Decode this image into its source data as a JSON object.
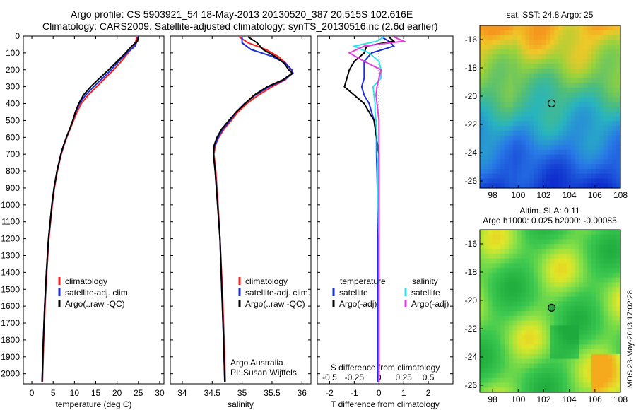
{
  "header": {
    "title_line1": "Argo profile: CS 5903921_54 18-May-2013 20130520_387 20.515S 102.616E",
    "title_line2": "Climatology: CARS2009. Satellite-adjusted climatology: synTS_20130516.nc (2.6d earlier)"
  },
  "stamp": "IMOS 23-May-2013 17:02:28",
  "colors": {
    "climatology": "#ff2020",
    "satellite": "#1a2fd8",
    "argo": "#000000",
    "salinity_satellite": "#33e0e8",
    "salinity_argo": "#e040e0"
  },
  "chart_data": [
    {
      "type": "line",
      "name": "temperature-panel",
      "xlabel": "temperature (deg C)",
      "ylabel": "",
      "xlim": [
        -2,
        31
      ],
      "ylim": [
        2060,
        0
      ],
      "xticks": [
        0,
        5,
        10,
        15,
        20,
        25,
        30
      ],
      "yticks": [
        0,
        100,
        200,
        300,
        400,
        500,
        600,
        700,
        800,
        900,
        1000,
        1100,
        1200,
        1300,
        1400,
        1500,
        1600,
        1700,
        1800,
        1900,
        2000
      ],
      "legend": [
        "climatology",
        "satellite-adj. clim.",
        "Argo(..raw -QC)"
      ],
      "legend_placement": "bottom-center",
      "series": [
        {
          "name": "climatology",
          "color_key": "climatology",
          "depth": [
            5,
            30,
            60,
            100,
            150,
            200,
            250,
            300,
            350,
            400,
            450,
            500,
            550,
            600,
            650,
            700,
            800,
            900,
            1000,
            1200,
            1400,
            1600,
            1800,
            2050
          ],
          "values": [
            24.6,
            24.4,
            23.9,
            22.6,
            21.0,
            19.2,
            17.2,
            15.2,
            13.2,
            11.6,
            10.6,
            9.8,
            9.0,
            8.2,
            7.5,
            6.9,
            6.0,
            5.3,
            4.8,
            4.0,
            3.5,
            3.1,
            2.8,
            2.5
          ]
        },
        {
          "name": "satellite-adj. clim.",
          "color_key": "satellite",
          "depth": [
            5,
            30,
            60,
            100,
            150,
            200,
            250,
            300,
            350,
            400,
            450,
            500,
            550,
            600,
            650,
            700,
            800,
            900,
            1000,
            1200,
            1400,
            1600,
            1800,
            2050
          ],
          "values": [
            24.8,
            24.7,
            24.2,
            22.3,
            20.4,
            18.6,
            16.6,
            14.5,
            12.6,
            11.2,
            10.3,
            9.6,
            8.9,
            8.1,
            7.4,
            6.8,
            5.9,
            5.2,
            4.7,
            3.9,
            3.4,
            3.0,
            2.7,
            2.4
          ]
        },
        {
          "name": "Argo(..raw -QC)",
          "color_key": "argo",
          "depth": [
            5,
            30,
            60,
            100,
            150,
            200,
            250,
            300,
            350,
            400,
            450,
            500,
            550,
            600,
            650,
            700,
            800,
            900,
            1000,
            1200,
            1400,
            1600,
            1800,
            2050
          ],
          "values": [
            25.0,
            24.8,
            23.4,
            22.0,
            20.0,
            18.0,
            15.9,
            13.8,
            12.1,
            11.0,
            10.2,
            9.6,
            8.9,
            8.1,
            7.4,
            6.8,
            5.9,
            5.2,
            4.7,
            3.9,
            3.4,
            3.0,
            2.7,
            2.4
          ]
        }
      ]
    },
    {
      "type": "line",
      "name": "salinity-panel",
      "xlabel": "salinity",
      "xlim": [
        33.8,
        36.15
      ],
      "ylim": [
        2060,
        0
      ],
      "xticks": [
        34,
        34.5,
        35,
        35.5,
        36
      ],
      "xtick_labels": [
        "34",
        "34.5",
        "35",
        "35.5",
        "36"
      ],
      "legend": [
        "climatology",
        "satellite-adj. clim.",
        "Argo(..raw -QC)"
      ],
      "legend_placement": "bottom-right",
      "annotation": [
        "Argo Australia",
        "PI: Susan Wijffels"
      ],
      "series": [
        {
          "name": "climatology",
          "color_key": "climatology",
          "depth": [
            5,
            40,
            80,
            120,
            160,
            200,
            220,
            260,
            300,
            350,
            400,
            450,
            500,
            550,
            600,
            650,
            700,
            800,
            1000,
            1200,
            1500,
            1800,
            2050
          ],
          "values": [
            34.95,
            35.1,
            35.4,
            35.6,
            35.73,
            35.82,
            35.83,
            35.72,
            35.5,
            35.27,
            35.08,
            34.93,
            34.82,
            34.7,
            34.61,
            34.55,
            34.53,
            34.56,
            34.6,
            34.63,
            34.67,
            34.7,
            34.72
          ]
        },
        {
          "name": "satellite-adj. clim.",
          "color_key": "satellite",
          "depth": [
            5,
            40,
            80,
            120,
            160,
            200,
            220,
            260,
            300,
            350,
            400,
            450,
            500,
            550,
            600,
            650,
            700,
            800,
            1000,
            1200,
            1500,
            1800,
            2050
          ],
          "values": [
            35.0,
            35.0,
            35.15,
            35.5,
            35.72,
            35.83,
            35.85,
            35.7,
            35.45,
            35.22,
            35.04,
            34.9,
            34.8,
            34.68,
            34.6,
            34.54,
            34.52,
            34.55,
            34.59,
            34.63,
            34.66,
            34.69,
            34.71
          ]
        },
        {
          "name": "Argo(..raw -QC)",
          "color_key": "argo",
          "depth": [
            5,
            40,
            80,
            120,
            160,
            200,
            220,
            260,
            300,
            350,
            400,
            450,
            500,
            550,
            600,
            650,
            700,
            800,
            1000,
            1200,
            1500,
            1800,
            2050
          ],
          "values": [
            35.1,
            35.25,
            35.35,
            35.55,
            35.7,
            35.78,
            35.84,
            35.68,
            35.42,
            35.2,
            35.05,
            34.9,
            34.78,
            34.66,
            34.58,
            34.53,
            34.52,
            34.55,
            34.59,
            34.63,
            34.66,
            34.69,
            34.71
          ]
        }
      ]
    },
    {
      "type": "line",
      "name": "difference-panel",
      "xlabel": "T difference from climatology",
      "top_label": "S difference from climatology",
      "xlim": [
        -2.5,
        3
      ],
      "ylim": [
        2060,
        0
      ],
      "xticks_T": [
        -2,
        -1,
        0,
        1,
        2
      ],
      "xticks_S": [
        -0.5,
        -0.25,
        0,
        0.25,
        0.5
      ],
      "xtick_labels_S": [
        "-0.5",
        "-0.25",
        "0",
        "0.25",
        "0.5"
      ],
      "legend_temperature": {
        "heading": "temperature",
        "items": [
          "satellite",
          "Argo(-adj)"
        ]
      },
      "legend_salinity": {
        "heading": "salinity",
        "items": [
          "satellite",
          "Argo(-adj)"
        ]
      },
      "series": [
        {
          "name": "satellite",
          "group": "temperature",
          "color_key": "satellite",
          "depth": [
            5,
            30,
            60,
            100,
            150,
            200,
            250,
            300,
            350,
            400,
            450,
            500,
            600,
            700,
            800,
            1000,
            1200,
            1500,
            1800,
            2050
          ],
          "values": [
            0.1,
            0.4,
            0.6,
            -0.3,
            -0.6,
            -0.6,
            -0.6,
            -0.7,
            -0.6,
            -0.4,
            -0.3,
            -0.2,
            -0.1,
            -0.1,
            -0.08,
            -0.05,
            -0.05,
            -0.05,
            -0.05,
            -0.05
          ]
        },
        {
          "name": "Argo(-adj)",
          "group": "temperature",
          "color_key": "argo",
          "depth": [
            5,
            30,
            60,
            100,
            150,
            200,
            250,
            300,
            350,
            400,
            450,
            500,
            600,
            700,
            800,
            1000,
            1200,
            1500,
            1800,
            2050
          ],
          "values": [
            0.4,
            0.6,
            -0.5,
            -0.6,
            -1.0,
            -1.2,
            -1.3,
            -1.4,
            -1.0,
            -0.6,
            -0.4,
            -0.2,
            -0.1,
            0.0,
            0.0,
            0.0,
            0.0,
            0.0,
            0.0,
            0.0
          ]
        },
        {
          "name": "satellite",
          "group": "salinity",
          "color_key": "salinity_satellite",
          "depth": [
            5,
            30,
            60,
            100,
            150,
            200,
            250,
            300,
            350,
            400,
            450,
            500,
            600,
            700,
            800,
            1000,
            1200,
            1500,
            1800,
            2050
          ],
          "values": [
            0.05,
            -0.02,
            -0.25,
            -0.1,
            0.0,
            0.02,
            0.02,
            -0.06,
            -0.05,
            -0.04,
            -0.04,
            -0.03,
            -0.02,
            -0.02,
            -0.01,
            -0.01,
            0.0,
            0.0,
            0.0,
            0.0
          ]
        },
        {
          "name": "Argo(-adj)",
          "group": "salinity",
          "color_key": "salinity_argo",
          "depth": [
            5,
            30,
            60,
            100,
            150,
            200,
            250,
            300,
            350,
            400,
            450,
            500,
            600,
            700,
            800,
            1000,
            1200,
            1500,
            1800,
            2050
          ],
          "values": [
            0.15,
            0.25,
            -0.15,
            -0.3,
            -0.15,
            0.02,
            0.0,
            -0.02,
            -0.03,
            -0.02,
            -0.01,
            0.0,
            0.0,
            0.0,
            0.0,
            0.0,
            0.0,
            0.0,
            0.0,
            0.0
          ]
        }
      ]
    },
    {
      "type": "heatmap",
      "name": "sst-map",
      "title": "sat. SST: 24.8 Argo: 25",
      "xlim": [
        97,
        108
      ],
      "ylim": [
        -26.5,
        -15
      ],
      "xticks": [
        98,
        100,
        102,
        104,
        106,
        108
      ],
      "yticks": [
        -16,
        -18,
        -20,
        -22,
        -24,
        -26
      ],
      "float_position": {
        "lon": 102.616,
        "lat": -20.515
      }
    },
    {
      "type": "heatmap",
      "name": "sla-map",
      "title_line1": "Altim. SLA: 0.11",
      "title_line2": "Argo h1000: 0.025 h2000: -0.00085",
      "xlim": [
        97,
        108
      ],
      "ylim": [
        -26.5,
        -15
      ],
      "xticks": [
        98,
        100,
        102,
        104,
        106,
        108
      ],
      "yticks": [
        -16,
        -18,
        -20,
        -22,
        -24,
        -26
      ],
      "float_position": {
        "lon": 102.616,
        "lat": -20.515
      }
    }
  ]
}
